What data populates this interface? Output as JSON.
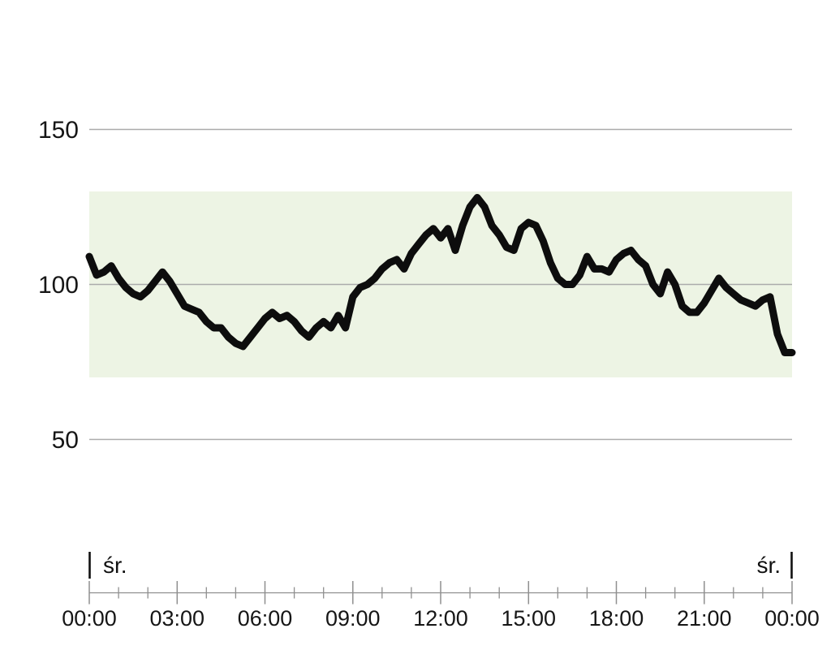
{
  "chart_data": {
    "type": "line",
    "title": "",
    "xlabel": "",
    "ylabel": "",
    "x_axis": {
      "xlim_hours": [
        0,
        24
      ],
      "major_tick_hours": [
        0,
        3,
        6,
        9,
        12,
        15,
        18,
        21,
        24
      ],
      "major_tick_labels": [
        "00:00",
        "03:00",
        "06:00",
        "09:00",
        "12:00",
        "15:00",
        "18:00",
        "21:00",
        "00:00"
      ],
      "minor_tick_every_hours": 1
    },
    "y_axis": {
      "tick_values": [
        150,
        100,
        50
      ],
      "tick_labels": [
        "150",
        "100",
        "50"
      ]
    },
    "target_band": {
      "low": 70,
      "high": 130,
      "color": "#edf4e4"
    },
    "day_markers": {
      "start_label": "śr.",
      "end_label": "śr."
    },
    "grid_on": true,
    "legend": "none",
    "line_color": "#0d0d0d",
    "grid_color": "#ababab",
    "axis_color": "#8f8f8f",
    "text_color": "#161616",
    "series": [
      {
        "name": "measurements",
        "color": "#0d0d0d",
        "points": [
          [
            0.0,
            109
          ],
          [
            0.25,
            103
          ],
          [
            0.5,
            104
          ],
          [
            0.75,
            106
          ],
          [
            1.0,
            102
          ],
          [
            1.25,
            99
          ],
          [
            1.5,
            97
          ],
          [
            1.75,
            96
          ],
          [
            2.0,
            98
          ],
          [
            2.25,
            101
          ],
          [
            2.5,
            104
          ],
          [
            2.75,
            101
          ],
          [
            3.0,
            97
          ],
          [
            3.25,
            93
          ],
          [
            3.5,
            92
          ],
          [
            3.75,
            91
          ],
          [
            4.0,
            88
          ],
          [
            4.25,
            86
          ],
          [
            4.5,
            86
          ],
          [
            4.75,
            83
          ],
          [
            5.0,
            81
          ],
          [
            5.25,
            80
          ],
          [
            5.5,
            83
          ],
          [
            5.75,
            86
          ],
          [
            6.0,
            89
          ],
          [
            6.25,
            91
          ],
          [
            6.5,
            89
          ],
          [
            6.75,
            90
          ],
          [
            7.0,
            88
          ],
          [
            7.25,
            85
          ],
          [
            7.5,
            83
          ],
          [
            7.75,
            86
          ],
          [
            8.0,
            88
          ],
          [
            8.25,
            86
          ],
          [
            8.5,
            90
          ],
          [
            8.75,
            86
          ],
          [
            9.0,
            96
          ],
          [
            9.25,
            99
          ],
          [
            9.5,
            100
          ],
          [
            9.75,
            102
          ],
          [
            10.0,
            105
          ],
          [
            10.25,
            107
          ],
          [
            10.5,
            108
          ],
          [
            10.75,
            105
          ],
          [
            11.0,
            110
          ],
          [
            11.25,
            113
          ],
          [
            11.5,
            116
          ],
          [
            11.75,
            118
          ],
          [
            12.0,
            115
          ],
          [
            12.25,
            118
          ],
          [
            12.5,
            111
          ],
          [
            12.75,
            119
          ],
          [
            13.0,
            125
          ],
          [
            13.25,
            128
          ],
          [
            13.5,
            125
          ],
          [
            13.75,
            119
          ],
          [
            14.0,
            116
          ],
          [
            14.25,
            112
          ],
          [
            14.5,
            111
          ],
          [
            14.75,
            118
          ],
          [
            15.0,
            120
          ],
          [
            15.25,
            119
          ],
          [
            15.5,
            114
          ],
          [
            15.75,
            107
          ],
          [
            16.0,
            102
          ],
          [
            16.25,
            100
          ],
          [
            16.5,
            100
          ],
          [
            16.75,
            103
          ],
          [
            17.0,
            109
          ],
          [
            17.25,
            105
          ],
          [
            17.5,
            105
          ],
          [
            17.75,
            104
          ],
          [
            18.0,
            108
          ],
          [
            18.25,
            110
          ],
          [
            18.5,
            111
          ],
          [
            18.75,
            108
          ],
          [
            19.0,
            106
          ],
          [
            19.25,
            100
          ],
          [
            19.5,
            97
          ],
          [
            19.75,
            104
          ],
          [
            20.0,
            100
          ],
          [
            20.25,
            93
          ],
          [
            20.5,
            91
          ],
          [
            20.75,
            91
          ],
          [
            21.0,
            94
          ],
          [
            21.25,
            98
          ],
          [
            21.5,
            102
          ],
          [
            21.75,
            99
          ],
          [
            22.0,
            97
          ],
          [
            22.25,
            95
          ],
          [
            22.5,
            94
          ],
          [
            22.75,
            93
          ],
          [
            23.0,
            95
          ],
          [
            23.25,
            96
          ],
          [
            23.5,
            84
          ],
          [
            23.75,
            78
          ],
          [
            24.0,
            78
          ]
        ]
      }
    ]
  }
}
